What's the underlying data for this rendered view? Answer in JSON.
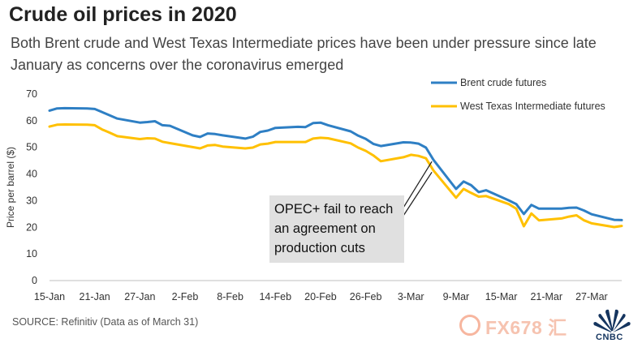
{
  "header": {
    "title": "Crude oil prices in 2020",
    "subtitle": "Both Brent crude and West Texas Intermediate prices have been under pressure since late January as concerns over the coronavirus emerged"
  },
  "footer": {
    "source": "SOURCE: Refinitiv (Data as of March 31)",
    "watermark_text": "FX678 汇",
    "brand": "CNBC"
  },
  "colors": {
    "brent": "#2e7fc4",
    "wti": "#ffc000",
    "annotation_bg": "#e0e0e0"
  },
  "chart_data": {
    "type": "line",
    "ylabel": "Price per barrel ($)",
    "ylim": [
      0,
      70
    ],
    "yticks": [
      0,
      10,
      20,
      30,
      40,
      50,
      60,
      70
    ],
    "xlim": [
      "2020-01-15",
      "2020-03-31"
    ],
    "xtick_labels": [
      {
        "date": "2020-01-15",
        "label": "15-Jan"
      },
      {
        "date": "2020-01-21",
        "label": "21-Jan"
      },
      {
        "date": "2020-01-27",
        "label": "27-Jan"
      },
      {
        "date": "2020-02-02",
        "label": "2-Feb"
      },
      {
        "date": "2020-02-08",
        "label": "8-Feb"
      },
      {
        "date": "2020-02-14",
        "label": "14-Feb"
      },
      {
        "date": "2020-02-20",
        "label": "20-Feb"
      },
      {
        "date": "2020-02-26",
        "label": "26-Feb"
      },
      {
        "date": "2020-03-03",
        "label": "3-Mar"
      },
      {
        "date": "2020-03-09",
        "label": "9-Mar"
      },
      {
        "date": "2020-03-15",
        "label": "15-Mar"
      },
      {
        "date": "2020-03-21",
        "label": "21-Mar"
      },
      {
        "date": "2020-03-27",
        "label": "27-Mar"
      }
    ],
    "legend_position": "top-right",
    "series": [
      {
        "name": "Brent crude futures",
        "color": "#2e7fc4",
        "x": [
          "2020-01-15",
          "2020-01-16",
          "2020-01-17",
          "2020-01-20",
          "2020-01-21",
          "2020-01-22",
          "2020-01-23",
          "2020-01-24",
          "2020-01-27",
          "2020-01-28",
          "2020-01-29",
          "2020-01-30",
          "2020-01-31",
          "2020-02-03",
          "2020-02-04",
          "2020-02-05",
          "2020-02-06",
          "2020-02-07",
          "2020-02-10",
          "2020-02-11",
          "2020-02-12",
          "2020-02-13",
          "2020-02-14",
          "2020-02-17",
          "2020-02-18",
          "2020-02-19",
          "2020-02-20",
          "2020-02-21",
          "2020-02-24",
          "2020-02-25",
          "2020-02-26",
          "2020-02-27",
          "2020-02-28",
          "2020-03-02",
          "2020-03-03",
          "2020-03-04",
          "2020-03-05",
          "2020-03-06",
          "2020-03-09",
          "2020-03-10",
          "2020-03-11",
          "2020-03-12",
          "2020-03-13",
          "2020-03-16",
          "2020-03-17",
          "2020-03-18",
          "2020-03-19",
          "2020-03-20",
          "2020-03-23",
          "2020-03-24",
          "2020-03-25",
          "2020-03-26",
          "2020-03-27",
          "2020-03-30",
          "2020-03-31"
        ],
        "y": [
          63.8,
          64.6,
          64.7,
          64.6,
          64.4,
          63.2,
          62.0,
          60.8,
          59.3,
          59.5,
          59.8,
          58.3,
          58.1,
          54.5,
          53.9,
          55.2,
          55.0,
          54.5,
          53.3,
          54.0,
          55.8,
          56.3,
          57.3,
          57.7,
          57.6,
          59.1,
          59.3,
          58.3,
          56.0,
          54.4,
          53.2,
          51.3,
          50.5,
          51.9,
          51.8,
          51.4,
          49.9,
          45.3,
          34.4,
          37.2,
          35.8,
          33.2,
          33.9,
          30.1,
          28.7,
          25.0,
          28.4,
          27.0,
          27.0,
          27.3,
          27.4,
          26.3,
          24.9,
          22.8,
          22.7
        ]
      },
      {
        "name": "West Texas Intermediate futures",
        "color": "#ffc000",
        "x": [
          "2020-01-15",
          "2020-01-16",
          "2020-01-17",
          "2020-01-20",
          "2020-01-21",
          "2020-01-22",
          "2020-01-23",
          "2020-01-24",
          "2020-01-27",
          "2020-01-28",
          "2020-01-29",
          "2020-01-30",
          "2020-01-31",
          "2020-02-03",
          "2020-02-04",
          "2020-02-05",
          "2020-02-06",
          "2020-02-07",
          "2020-02-10",
          "2020-02-11",
          "2020-02-12",
          "2020-02-13",
          "2020-02-14",
          "2020-02-17",
          "2020-02-18",
          "2020-02-19",
          "2020-02-20",
          "2020-02-21",
          "2020-02-24",
          "2020-02-25",
          "2020-02-26",
          "2020-02-27",
          "2020-02-28",
          "2020-03-02",
          "2020-03-03",
          "2020-03-04",
          "2020-03-05",
          "2020-03-06",
          "2020-03-09",
          "2020-03-10",
          "2020-03-11",
          "2020-03-12",
          "2020-03-13",
          "2020-03-16",
          "2020-03-17",
          "2020-03-18",
          "2020-03-19",
          "2020-03-20",
          "2020-03-23",
          "2020-03-24",
          "2020-03-25",
          "2020-03-26",
          "2020-03-27",
          "2020-03-30",
          "2020-03-31"
        ],
        "y": [
          57.8,
          58.5,
          58.6,
          58.5,
          58.3,
          56.7,
          55.5,
          54.2,
          53.1,
          53.4,
          53.3,
          52.1,
          51.6,
          50.1,
          49.6,
          50.7,
          50.9,
          50.3,
          49.6,
          49.9,
          51.1,
          51.4,
          52.0,
          52.0,
          52.0,
          53.3,
          53.6,
          53.4,
          51.5,
          49.9,
          48.7,
          47.0,
          44.8,
          46.3,
          47.2,
          46.8,
          45.9,
          41.3,
          31.1,
          34.4,
          32.9,
          31.5,
          31.7,
          28.7,
          27.0,
          20.4,
          25.2,
          22.6,
          23.3,
          24.0,
          24.5,
          22.6,
          21.5,
          20.1,
          20.5
        ]
      }
    ],
    "annotation": {
      "text_lines": [
        "OPEC+ fail to reach",
        "an agreement on",
        "production cuts"
      ],
      "points_to_dates": [
        "2020-03-06",
        "2020-03-06"
      ],
      "points_to_values": [
        45.3,
        41.3
      ]
    }
  }
}
